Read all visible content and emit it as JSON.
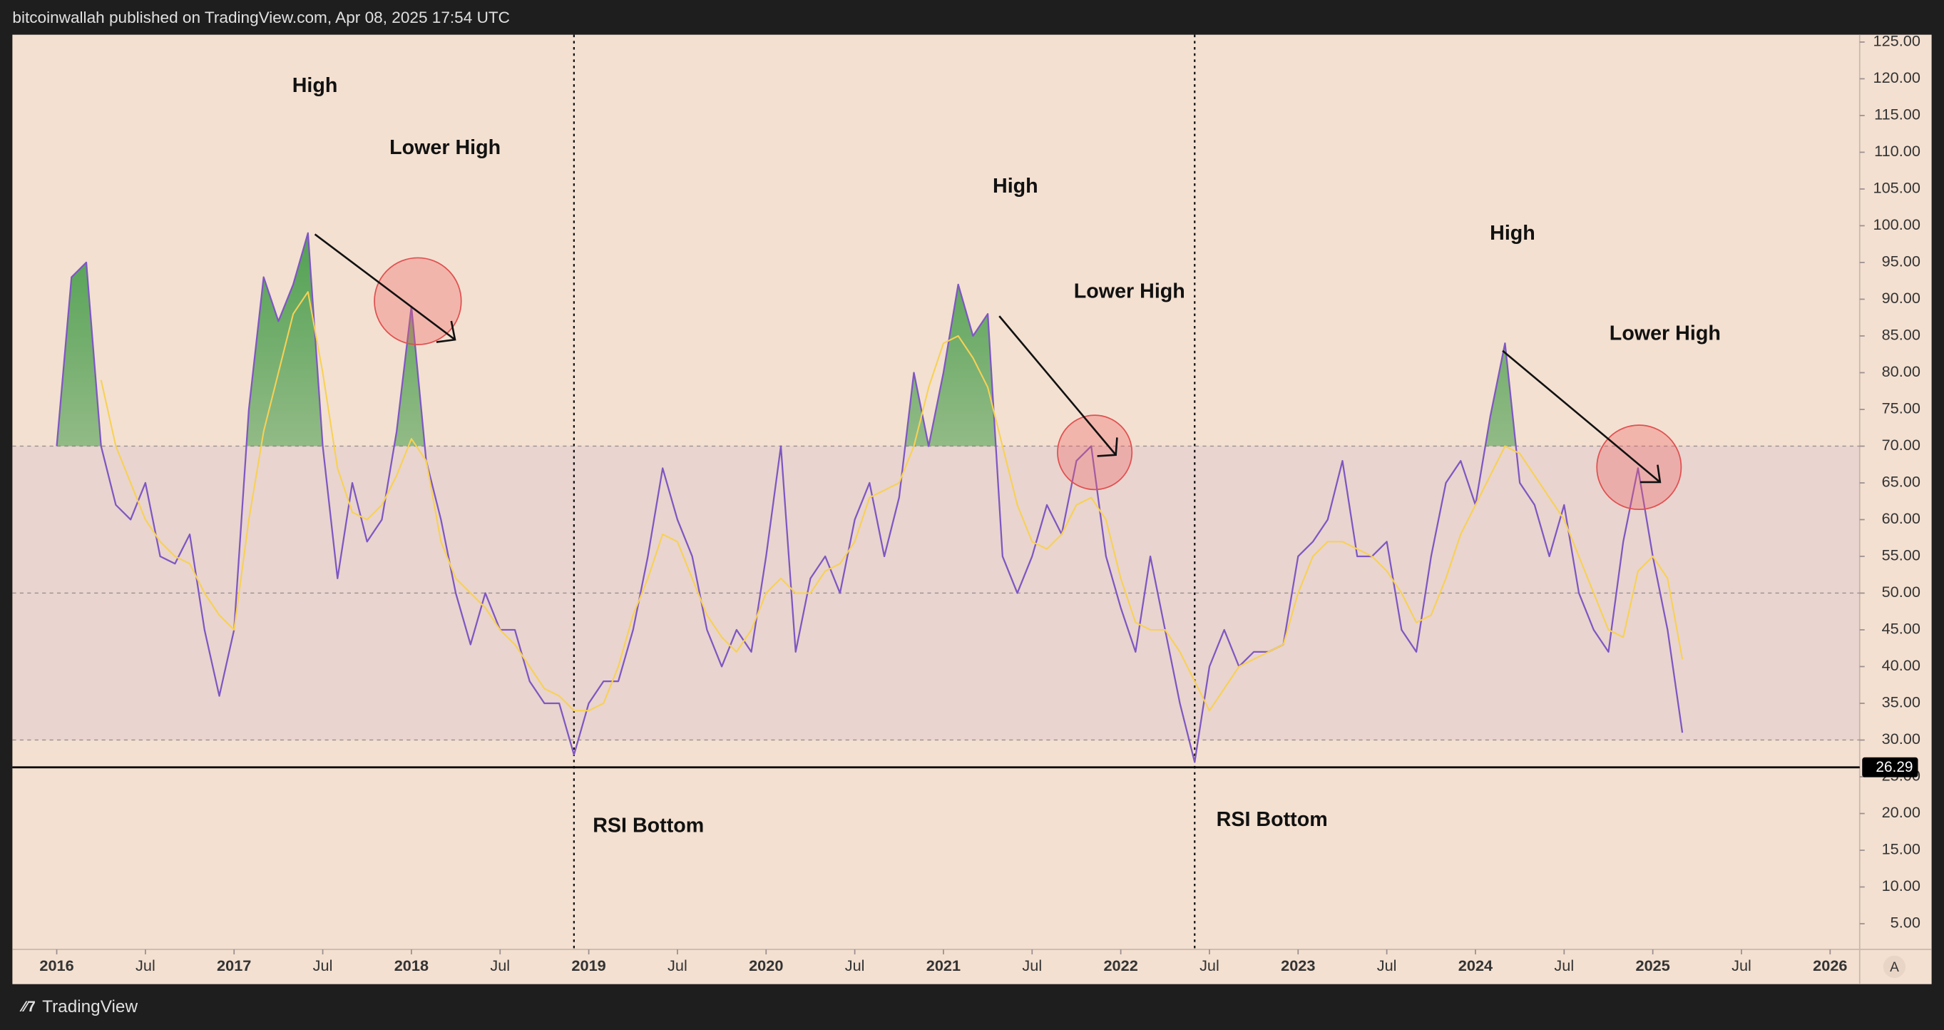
{
  "header": "bitcoinwallah published on TradingView.com, Apr 08, 2025 17:54 UTC",
  "footer": "TradingView",
  "scale_button": "A",
  "chart_data": {
    "type": "line",
    "x": [
      "2016-01",
      "2016-02",
      "2016-03",
      "2016-04",
      "2016-05",
      "2016-06",
      "2016-07",
      "2016-08",
      "2016-09",
      "2016-10",
      "2016-11",
      "2016-12",
      "2017-01",
      "2017-02",
      "2017-03",
      "2017-04",
      "2017-05",
      "2017-06",
      "2017-07",
      "2017-08",
      "2017-09",
      "2017-10",
      "2017-11",
      "2017-12",
      "2018-01",
      "2018-02",
      "2018-03",
      "2018-04",
      "2018-05",
      "2018-06",
      "2018-07",
      "2018-08",
      "2018-09",
      "2018-10",
      "2018-11",
      "2018-12",
      "2019-01",
      "2019-02",
      "2019-03",
      "2019-04",
      "2019-05",
      "2019-06",
      "2019-07",
      "2019-08",
      "2019-09",
      "2019-10",
      "2019-11",
      "2019-12",
      "2020-01",
      "2020-02",
      "2020-03",
      "2020-04",
      "2020-05",
      "2020-06",
      "2020-07",
      "2020-08",
      "2020-09",
      "2020-10",
      "2020-11",
      "2020-12",
      "2021-01",
      "2021-02",
      "2021-03",
      "2021-04",
      "2021-05",
      "2021-06",
      "2021-07",
      "2021-08",
      "2021-09",
      "2021-10",
      "2021-11",
      "2021-12",
      "2022-01",
      "2022-02",
      "2022-03",
      "2022-04",
      "2022-05",
      "2022-06",
      "2022-07",
      "2022-08",
      "2022-09",
      "2022-10",
      "2022-11",
      "2022-12",
      "2023-01",
      "2023-02",
      "2023-03",
      "2023-04",
      "2023-05",
      "2023-06",
      "2023-07",
      "2023-08",
      "2023-09",
      "2023-10",
      "2023-11",
      "2023-12",
      "2024-01",
      "2024-02",
      "2024-03",
      "2024-04",
      "2024-05",
      "2024-06",
      "2024-07",
      "2024-08",
      "2024-09",
      "2024-10",
      "2024-11",
      "2024-12",
      "2025-01",
      "2025-02",
      "2025-03"
    ],
    "series": [
      {
        "color": "#7e57c2",
        "values": [
          70,
          93,
          95,
          70,
          62,
          60,
          65,
          55,
          54,
          58,
          45,
          36,
          45,
          75,
          93,
          87,
          92,
          99,
          70,
          52,
          65,
          57,
          60,
          72,
          89,
          68,
          60,
          50,
          43,
          50,
          45,
          45,
          38,
          35,
          35,
          28,
          35,
          38,
          38,
          45,
          55,
          67,
          60,
          55,
          45,
          40,
          45,
          42,
          55,
          70,
          42,
          52,
          55,
          50,
          60,
          65,
          55,
          63,
          80,
          70,
          80,
          92,
          85,
          88,
          55,
          50,
          55,
          62,
          58,
          68,
          70,
          55,
          48,
          42,
          55,
          45,
          35,
          27,
          40,
          45,
          40,
          42,
          42,
          43,
          55,
          57,
          60,
          68,
          55,
          55,
          57,
          45,
          42,
          55,
          65,
          68,
          62,
          74,
          84,
          65,
          62,
          55,
          62,
          50,
          45,
          42,
          57,
          67,
          55,
          45,
          31
        ]
      },
      {
        "color": "#f7d154",
        "values": [
          null,
          null,
          null,
          79,
          70,
          65,
          60,
          57,
          55,
          54,
          50,
          47,
          45,
          60,
          72,
          80,
          88,
          91,
          80,
          67,
          61,
          60,
          62,
          66,
          71,
          68,
          57,
          52,
          50,
          48,
          45,
          43,
          40,
          37,
          36,
          34,
          34,
          35,
          40,
          47,
          52,
          58,
          57,
          52,
          47,
          44,
          42,
          45,
          50,
          52,
          50,
          50,
          53,
          54,
          57,
          63,
          64,
          65,
          70,
          78,
          84,
          85,
          82,
          78,
          70,
          62,
          57,
          56,
          58,
          62,
          63,
          60,
          52,
          46,
          45,
          45,
          42,
          38,
          34,
          37,
          40,
          41,
          42,
          43,
          50,
          55,
          57,
          57,
          56,
          55,
          53,
          50,
          46,
          47,
          52,
          58,
          62,
          66,
          70,
          69,
          66,
          63,
          60,
          55,
          50,
          45,
          44,
          53,
          55,
          52,
          41
        ]
      }
    ],
    "xlim": [
      "2015-10",
      "2026-03"
    ],
    "xticks": [
      {
        "value": "2016-01",
        "label": "2016"
      },
      {
        "value": "2016-07",
        "label": "Jul"
      },
      {
        "value": "2017-01",
        "label": "2017"
      },
      {
        "value": "2017-07",
        "label": "Jul"
      },
      {
        "value": "2018-01",
        "label": "2018"
      },
      {
        "value": "2018-07",
        "label": "Jul"
      },
      {
        "value": "2019-01",
        "label": "2019"
      },
      {
        "value": "2019-07",
        "label": "Jul"
      },
      {
        "value": "2020-01",
        "label": "2020"
      },
      {
        "value": "2020-07",
        "label": "Jul"
      },
      {
        "value": "2021-01",
        "label": "2021"
      },
      {
        "value": "2021-07",
        "label": "Jul"
      },
      {
        "value": "2022-01",
        "label": "2022"
      },
      {
        "value": "2022-07",
        "label": "Jul"
      },
      {
        "value": "2023-01",
        "label": "2023"
      },
      {
        "value": "2023-07",
        "label": "Jul"
      },
      {
        "value": "2024-01",
        "label": "2024"
      },
      {
        "value": "2024-07",
        "label": "Jul"
      },
      {
        "value": "2025-01",
        "label": "2025"
      },
      {
        "value": "2025-07",
        "label": "Jul"
      },
      {
        "value": "2026-01",
        "label": "2026"
      }
    ],
    "ylim": [
      1.5,
      126
    ],
    "yticks": [
      {
        "value": 5,
        "label": "5.00"
      },
      {
        "value": 10,
        "label": "10.00"
      },
      {
        "value": 15,
        "label": "15.00"
      },
      {
        "value": 20,
        "label": "20.00"
      },
      {
        "value": 25,
        "label": "25.00"
      },
      {
        "value": 30,
        "label": "30.00"
      },
      {
        "value": 35,
        "label": "35.00"
      },
      {
        "value": 40,
        "label": "40.00"
      },
      {
        "value": 45,
        "label": "45.00"
      },
      {
        "value": 50,
        "label": "50.00"
      },
      {
        "value": 55,
        "label": "55.00"
      },
      {
        "value": 60,
        "label": "60.00"
      },
      {
        "value": 65,
        "label": "65.00"
      },
      {
        "value": 70,
        "label": "70.00"
      },
      {
        "value": 75,
        "label": "75.00"
      },
      {
        "value": 80,
        "label": "80.00"
      },
      {
        "value": 85,
        "label": "85.00"
      },
      {
        "value": 90,
        "label": "90.00"
      },
      {
        "value": 95,
        "label": "95.00"
      },
      {
        "value": 100,
        "label": "100.00"
      },
      {
        "value": 105,
        "label": "105.00"
      },
      {
        "value": 110,
        "label": "110.00"
      },
      {
        "value": 115,
        "label": "115.00"
      },
      {
        "value": 120,
        "label": "120.00"
      },
      {
        "value": 125,
        "label": "125.00"
      }
    ],
    "band": [
      30,
      70
    ],
    "midline": 50,
    "price_line": 26.29,
    "vlines": [
      "2018-12",
      "2022-06"
    ],
    "annotations": [
      "High",
      "Lower High",
      "High",
      "Lower High",
      "High",
      "Lower High",
      "RSI Bottom",
      "RSI Bottom"
    ]
  }
}
